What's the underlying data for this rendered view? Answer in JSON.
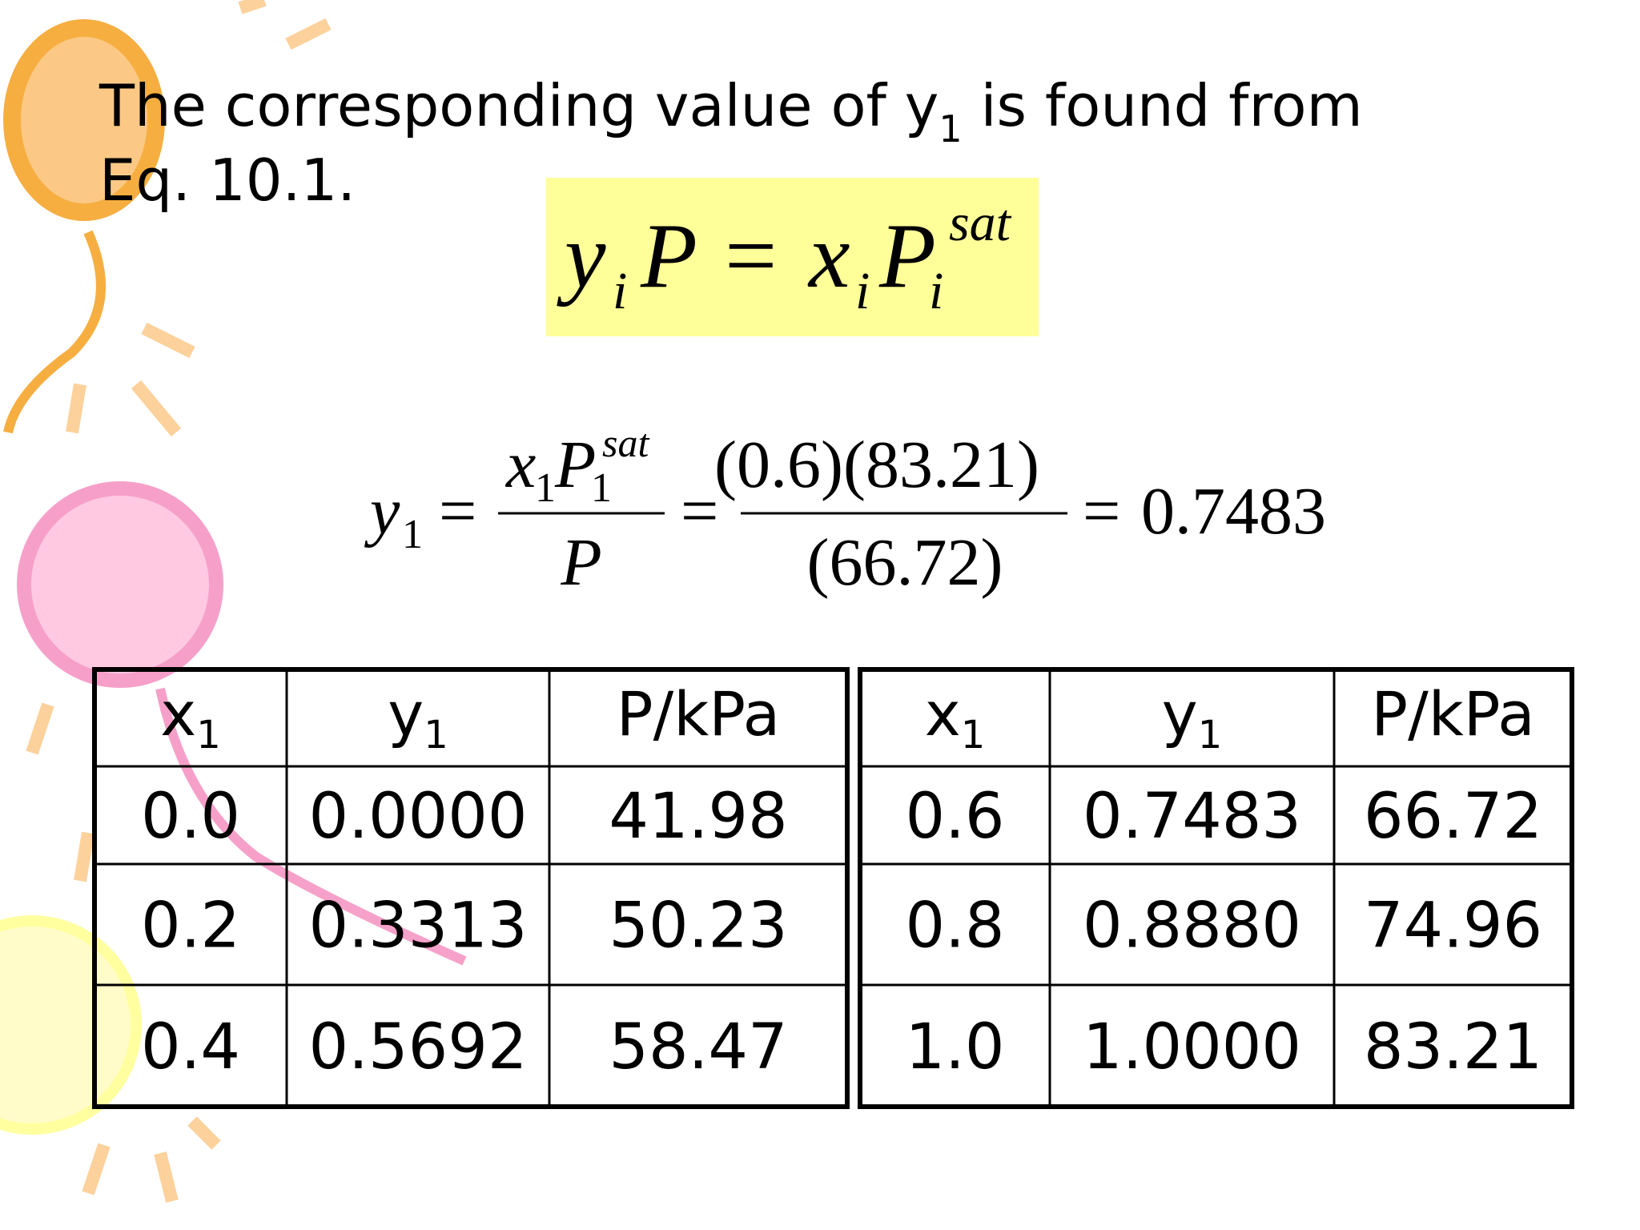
{
  "title": {
    "line1_before": "The corresponding value of y",
    "line1_sub": "1",
    "line1_after": " is found from",
    "line2": "Eq. 10.1."
  },
  "equation_1": {
    "y": "y",
    "y_sub": "i",
    "P": "P",
    "equals": "=",
    "x": "x",
    "x_sub": "i",
    "P_sat": "P",
    "sat": "sat",
    "P_sat_sub": "i"
  },
  "equation_2": {
    "y": "y",
    "y_sub": "1",
    "equals_1": "=",
    "x": "x",
    "x_sub": "1",
    "P_sat": "P",
    "sat": "sat",
    "P_sat_sub": "1",
    "P": "P",
    "equals_2": "=",
    "numerator": "(0.6)(83.21)",
    "denominator": "(66.72)",
    "equals_3": "=",
    "result": "0.7483"
  },
  "tables": [
    {
      "header": [
        {
          "text": "x",
          "sub": "1"
        },
        {
          "text": "y",
          "sub": "1"
        },
        {
          "text": "P/kPa"
        }
      ],
      "rows": [
        [
          "0.0",
          "0.0000",
          "41.98"
        ],
        [
          "0.2",
          "0.3313",
          "50.23"
        ],
        [
          "0.4",
          "0.5692",
          "58.47"
        ]
      ]
    },
    {
      "header": [
        {
          "text": "x",
          "sub": "1"
        },
        {
          "text": "y",
          "sub": "1"
        },
        {
          "text": "P/kPa"
        }
      ],
      "rows": [
        [
          "0.6",
          "0.7483",
          "66.72"
        ],
        [
          "0.8",
          "0.8880",
          "74.96"
        ],
        [
          "1.0",
          "1.0000",
          "83.21"
        ]
      ]
    }
  ]
}
